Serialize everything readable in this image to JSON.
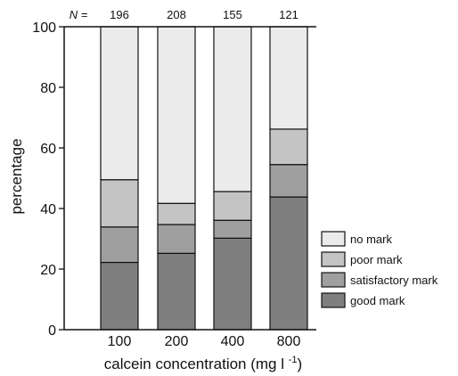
{
  "chart_data": {
    "type": "bar",
    "stacked": true,
    "categories": [
      "100",
      "200",
      "400",
      "800"
    ],
    "n_prefix": "N =",
    "n_values": [
      "196",
      "208",
      "155",
      "121"
    ],
    "xlabel": "calcein concentration (mg l",
    "xlabel_superscript": "-1",
    "xlabel_suffix": ")",
    "ylabel": "percentage",
    "ylim": [
      0,
      100
    ],
    "yticks": [
      "0",
      "20",
      "40",
      "60",
      "80",
      "100"
    ],
    "grid": false,
    "legend_position": "right",
    "series": [
      {
        "name": "good mark",
        "color": "#7f7f7f",
        "values": [
          22.2,
          25.2,
          30.2,
          43.8
        ]
      },
      {
        "name": "satisfactory mark",
        "color": "#9f9f9f",
        "values": [
          11.7,
          9.5,
          5.9,
          10.7
        ]
      },
      {
        "name": "poor mark",
        "color": "#c4c4c4",
        "values": [
          15.6,
          7.0,
          9.5,
          11.7
        ]
      },
      {
        "name": "no mark",
        "color": "#ebebeb",
        "values": [
          50.5,
          58.3,
          54.4,
          33.8
        ]
      }
    ]
  }
}
